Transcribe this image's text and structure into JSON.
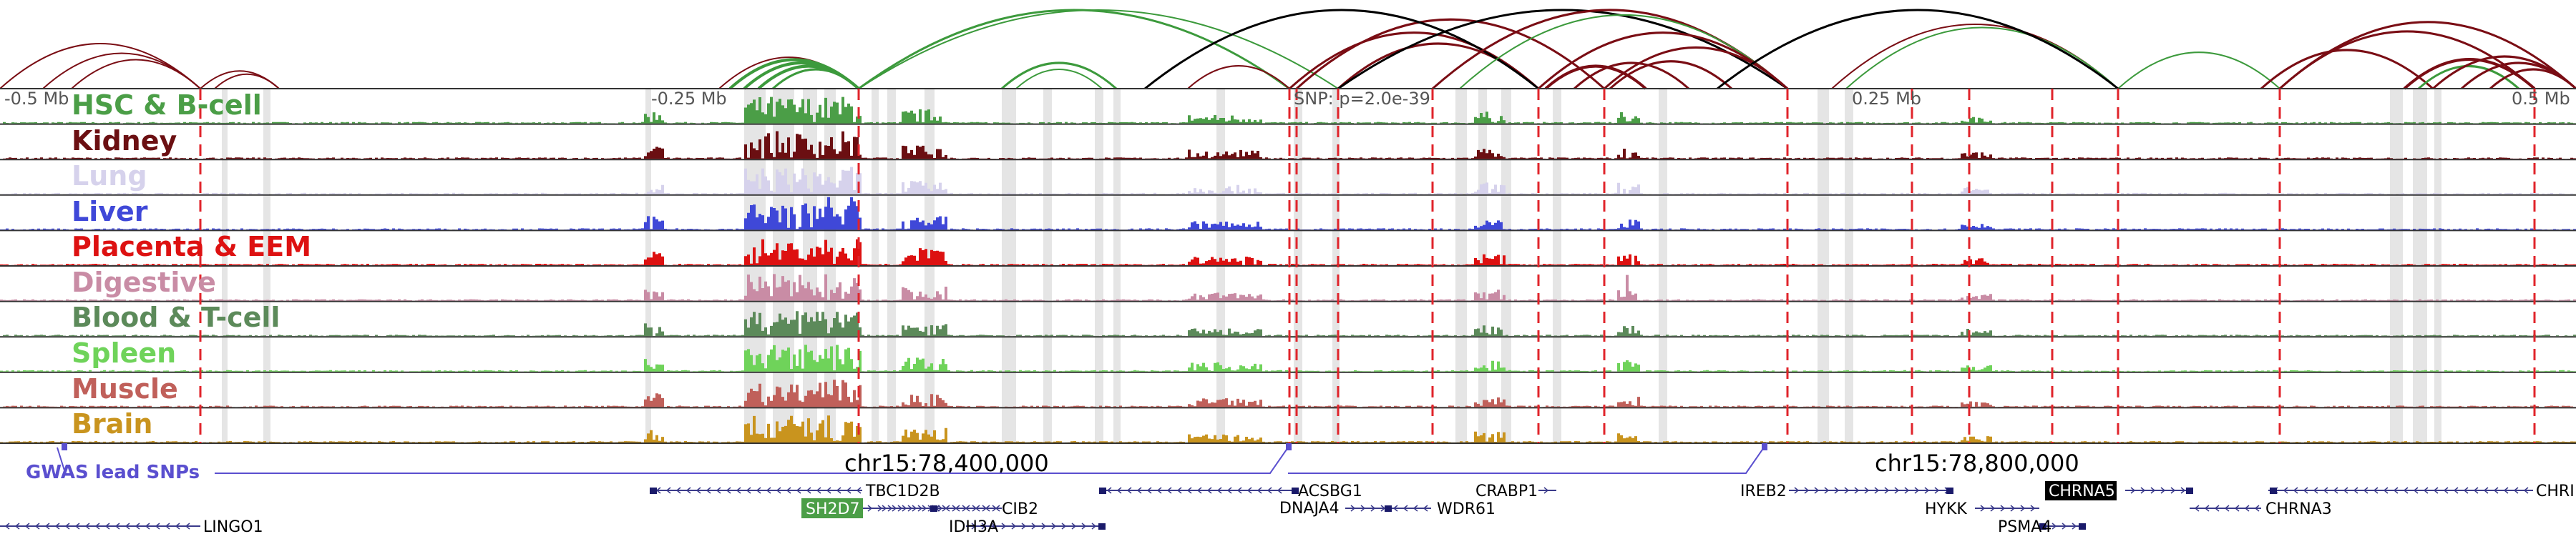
{
  "axis": {
    "ticks": [
      "-0.5 Mb",
      "-0.25 Mb",
      "0.25 Mb",
      "0.5 Mb"
    ],
    "snp_label": "SNP: p=2.0e-39",
    "coords": [
      "chr15:78,400,000",
      "chr15:78,800,000"
    ]
  },
  "tracks": [
    {
      "label": "HSC & B-cell",
      "color": "#4b9e47"
    },
    {
      "label": "Kidney",
      "color": "#6b0f12"
    },
    {
      "label": "Lung",
      "color": "#d6d2ec"
    },
    {
      "label": "Liver",
      "color": "#3f48d8"
    },
    {
      "label": "Placenta & EEM",
      "color": "#dd1111"
    },
    {
      "label": "Digestive",
      "color": "#c98ca5"
    },
    {
      "label": "Blood & T-cell",
      "color": "#5c8a5a"
    },
    {
      "label": "Spleen",
      "color": "#6fd35a"
    },
    {
      "label": "Muscle",
      "color": "#c0605a"
    },
    {
      "label": "Brain",
      "color": "#c9941e"
    }
  ],
  "gwas_label": "GWAS lead SNPs",
  "genes": [
    {
      "name": "TBC1D2B",
      "highlight": ""
    },
    {
      "name": "SH2D7",
      "highlight": "#4b9e47"
    },
    {
      "name": "CIB2",
      "highlight": ""
    },
    {
      "name": "IDH3A",
      "highlight": ""
    },
    {
      "name": "ACSBG1",
      "highlight": ""
    },
    {
      "name": "DNAJA4",
      "highlight": ""
    },
    {
      "name": "WDR61",
      "highlight": ""
    },
    {
      "name": "CRABP1",
      "highlight": ""
    },
    {
      "name": "IREB2",
      "highlight": ""
    },
    {
      "name": "HYKK",
      "highlight": ""
    },
    {
      "name": "CHRNA5",
      "highlight": "#000000"
    },
    {
      "name": "PSMA4",
      "highlight": ""
    },
    {
      "name": "CHRNA3",
      "highlight": ""
    },
    {
      "name": "CHRI",
      "highlight": ""
    },
    {
      "name": "LINGO1",
      "highlight": ""
    }
  ],
  "colors": {
    "arc_red": "#7a0d14",
    "arc_green": "#3c9a3c",
    "arc_black": "#000000",
    "dashed_line": "#e0242b",
    "gray_band": "#dcdcdc",
    "gwas": "#5a4fcf"
  }
}
